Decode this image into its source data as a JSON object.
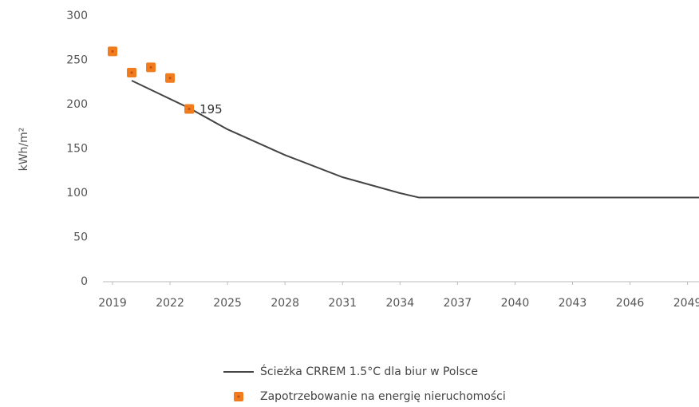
{
  "chart_data": {
    "type": "line",
    "y_label": "kWh/m²",
    "xlim": [
      2018.5,
      2049.6
    ],
    "xticks": [
      2019,
      2022,
      2025,
      2028,
      2031,
      2034,
      2037,
      2040,
      2043,
      2046,
      2049
    ],
    "ylim": [
      0,
      300
    ],
    "yticks": [
      0,
      50,
      100,
      150,
      200,
      250,
      300
    ],
    "grid": false,
    "legend": "bottom",
    "series": [
      {
        "name": "Ścieżka CRREM 1.5°C dla biur w Polsce",
        "type": "line",
        "color": "#444444",
        "x": [
          2020,
          2023,
          2025,
          2028,
          2031,
          2034,
          2035,
          2050
        ],
        "values": [
          227,
          196,
          172,
          143,
          118,
          100,
          95,
          95
        ]
      },
      {
        "name": "Zapotrzebowanie na energię nieruchomości",
        "type": "scatter",
        "color": "#f07c1e",
        "x": [
          2019,
          2020,
          2021,
          2022,
          2023
        ],
        "values": [
          260,
          236,
          242,
          230,
          195
        ],
        "value_labels": [
          null,
          null,
          null,
          null,
          "195"
        ]
      }
    ]
  }
}
